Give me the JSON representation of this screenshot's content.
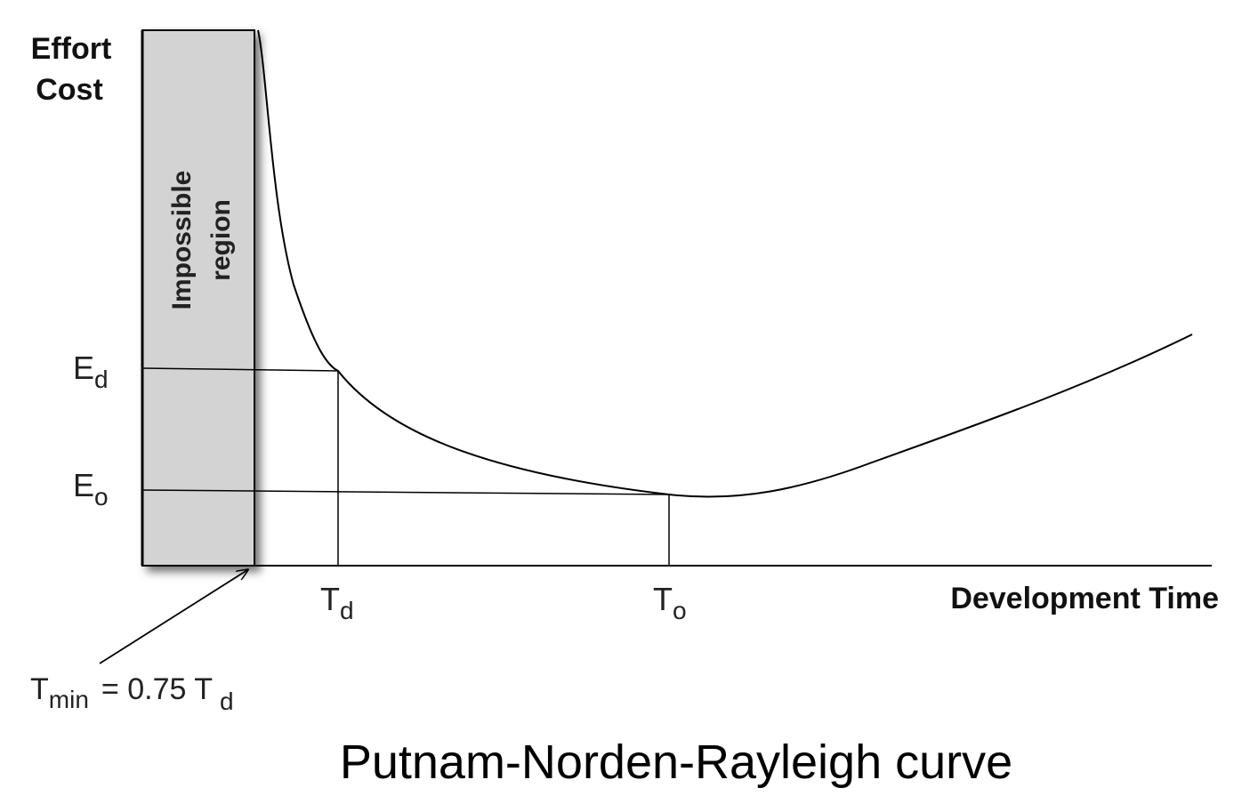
{
  "diagram": {
    "y_axis_label_line1": "Effort",
    "y_axis_label_line2": "Cost",
    "x_axis_label": "Development Time",
    "region_label_line1": "Impossible",
    "region_label_line2": "region",
    "ed_label": {
      "main": "E",
      "sub": "d"
    },
    "eo_label": {
      "main": "E",
      "sub": "o"
    },
    "td_label": {
      "main": "T",
      "sub": "d"
    },
    "to_label": {
      "main": "T",
      "sub": "o"
    },
    "tmin_formula": {
      "t": "T",
      "min_sub": "min",
      "equals": "= 0.75 T",
      "d_sub": "d"
    },
    "colors": {
      "impossible_region_fill": "#d3d3d3",
      "line": "#000000"
    }
  },
  "caption": "Putnam-Norden-Rayleigh curve"
}
